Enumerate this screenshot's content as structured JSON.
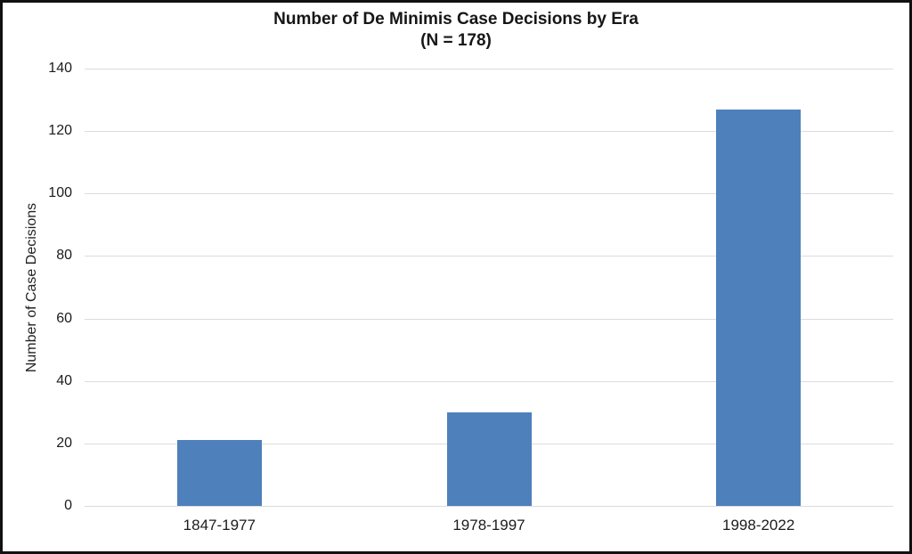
{
  "chart_data": {
    "type": "bar",
    "title": "Number of De Minimis Case Decisions by Era",
    "subtitle": "(N = 178)",
    "categories": [
      "1847-1977",
      "1978-1997",
      "1998-2022"
    ],
    "values": [
      21,
      30,
      127
    ],
    "xlabel": "",
    "ylabel": "Number of Case Decisions",
    "ylim": [
      0,
      140
    ],
    "yticks": [
      0,
      20,
      40,
      60,
      80,
      100,
      120,
      140
    ],
    "grid": true,
    "legend": "none",
    "bar_color": "#4e80bc",
    "gridline_color": "#dcdcdc",
    "frame_color": "#111111",
    "text_color": "#1c1c1c"
  }
}
